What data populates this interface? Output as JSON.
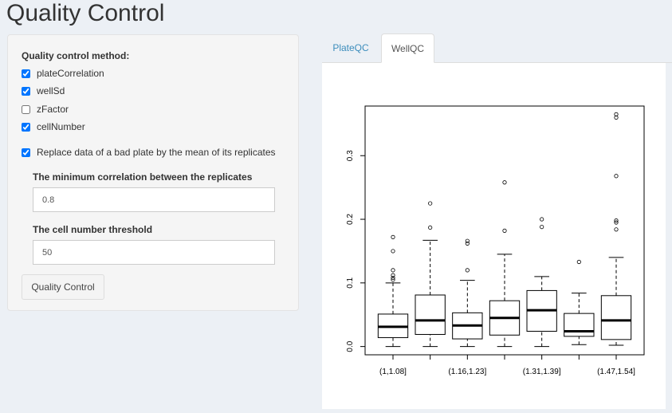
{
  "page": {
    "title": "Quality Control"
  },
  "sidebar": {
    "method_label": "Quality control method:",
    "methods": [
      {
        "label": "plateCorrelation",
        "checked": true
      },
      {
        "label": "wellSd",
        "checked": true
      },
      {
        "label": "zFactor",
        "checked": false
      },
      {
        "label": "cellNumber",
        "checked": true
      }
    ],
    "replace_option": {
      "label": "Replace data of a bad plate by the mean of its replicates",
      "checked": true
    },
    "min_correlation": {
      "label": "The minimum correlation between the replicates",
      "value": "0.8"
    },
    "cell_threshold": {
      "label": "The cell number threshold",
      "value": "50"
    },
    "button_label": "Quality Control"
  },
  "tabs": [
    {
      "label": "PlateQC",
      "active": false
    },
    {
      "label": "WellQC",
      "active": true
    }
  ],
  "chart_data": {
    "type": "boxplot",
    "x_tick_labels": [
      "(1,1.08]",
      "(1.16,1.23]",
      "(1.31,1.39]",
      "(1.47,1.54]"
    ],
    "y_ticks": [
      0.0,
      0.1,
      0.2,
      0.3
    ],
    "y_tick_labels": [
      "0.0",
      "0.1",
      "0.2",
      "0.3"
    ],
    "ylim": [
      -0.013,
      0.378
    ],
    "boxes": [
      {
        "lower_whisker": 0.0,
        "q1": 0.014,
        "median": 0.031,
        "q3": 0.051,
        "upper_whisker": 0.1,
        "outliers": [
          0.105,
          0.108,
          0.112,
          0.12,
          0.15,
          0.172
        ]
      },
      {
        "lower_whisker": 0.0,
        "q1": 0.019,
        "median": 0.041,
        "q3": 0.081,
        "upper_whisker": 0.167,
        "outliers": [
          0.187,
          0.225
        ]
      },
      {
        "lower_whisker": 0.0,
        "q1": 0.012,
        "median": 0.033,
        "q3": 0.053,
        "upper_whisker": 0.104,
        "outliers": [
          0.12,
          0.162,
          0.166
        ]
      },
      {
        "lower_whisker": 0.0,
        "q1": 0.018,
        "median": 0.045,
        "q3": 0.072,
        "upper_whisker": 0.145,
        "outliers": [
          0.182,
          0.258
        ]
      },
      {
        "lower_whisker": 0.0,
        "q1": 0.024,
        "median": 0.057,
        "q3": 0.088,
        "upper_whisker": 0.11,
        "outliers": [
          0.188,
          0.2
        ]
      },
      {
        "lower_whisker": 0.003,
        "q1": 0.016,
        "median": 0.024,
        "q3": 0.052,
        "upper_whisker": 0.084,
        "outliers": [
          0.133
        ]
      },
      {
        "lower_whisker": 0.002,
        "q1": 0.011,
        "median": 0.041,
        "q3": 0.08,
        "upper_whisker": 0.14,
        "outliers": [
          0.184,
          0.195,
          0.198,
          0.268,
          0.36,
          0.365
        ]
      }
    ]
  }
}
